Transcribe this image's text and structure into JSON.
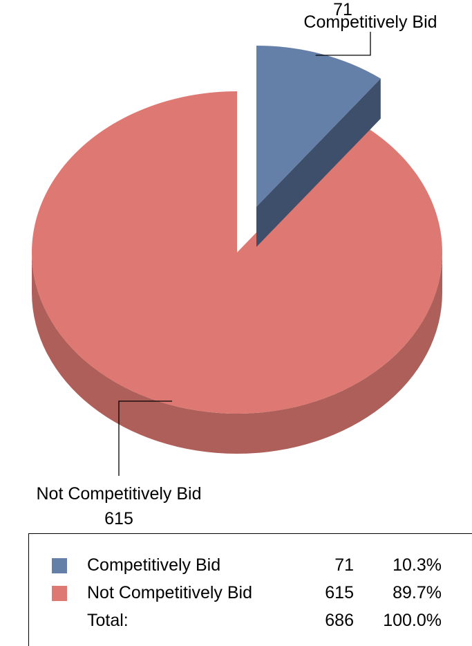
{
  "chart_data": {
    "type": "pie",
    "title": "",
    "slices": [
      {
        "label": "Competitively Bid",
        "value": 71,
        "percent": "10.3%",
        "color": "#647fa8",
        "side_color": "#3d4f6b",
        "exploded": true,
        "value_label": "71"
      },
      {
        "label": "Not Competitively Bid",
        "value": 615,
        "percent": "89.7%",
        "color": "#de7872",
        "side_color": "#ae5f59",
        "exploded": false,
        "value_label": "615"
      }
    ],
    "total": {
      "label": "Total:",
      "value": 686,
      "percent": "100.0%"
    },
    "legend_placement": "bottom"
  }
}
